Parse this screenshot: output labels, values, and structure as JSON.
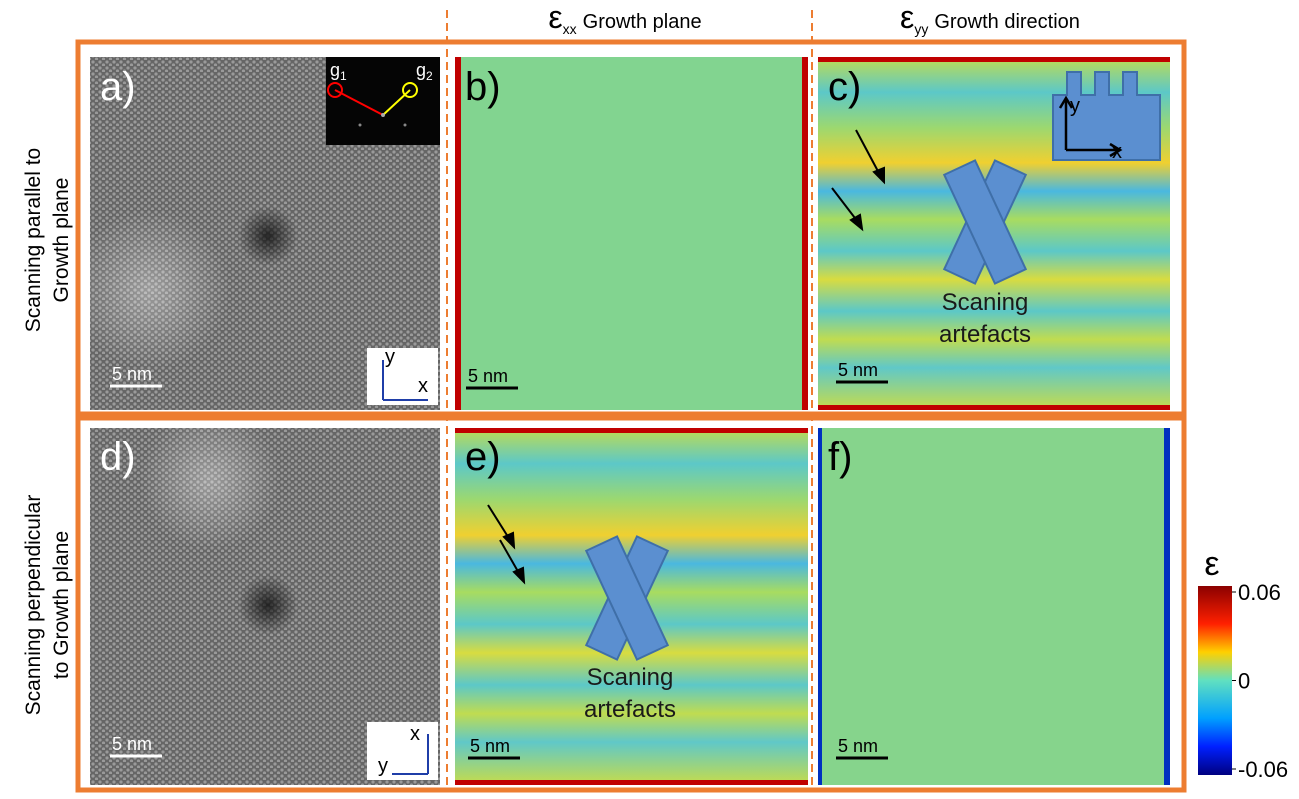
{
  "column_headers": [
    {
      "symbol": "ε",
      "subscript": "xx",
      "label": "Growth plane"
    },
    {
      "symbol": "ε",
      "subscript": "yy",
      "label": "Growth direction"
    }
  ],
  "row_labels": [
    [
      "Scanning parallel to",
      "Growth plane"
    ],
    [
      "Scanning perpendicular",
      "to Growth plane"
    ]
  ],
  "panels": [
    {
      "label": "a)",
      "scale_bar": "5 nm",
      "axes": [
        "y",
        "x"
      ],
      "fft_spots": [
        {
          "symbol": "g",
          "index": "1"
        },
        {
          "symbol": "g",
          "index": "2"
        }
      ]
    },
    {
      "label": "b)",
      "scale_bar": "5 nm"
    },
    {
      "label": "c)",
      "scale_bar": "5 nm",
      "schematic_axes": [
        "y",
        "x"
      ],
      "annotation": [
        "Scaning",
        "artefacts"
      ]
    },
    {
      "label": "d)",
      "scale_bar": "5 nm",
      "axes": [
        "x",
        "y"
      ]
    },
    {
      "label": "e)",
      "scale_bar": "5 nm",
      "annotation": [
        "Scaning",
        "artefacts"
      ]
    },
    {
      "label": "f)",
      "scale_bar": "5 nm"
    }
  ],
  "colorbar": {
    "label": "ε",
    "lim": [
      -0.06,
      0.06
    ],
    "ticks": [
      0.06,
      0,
      -0.06
    ]
  }
}
